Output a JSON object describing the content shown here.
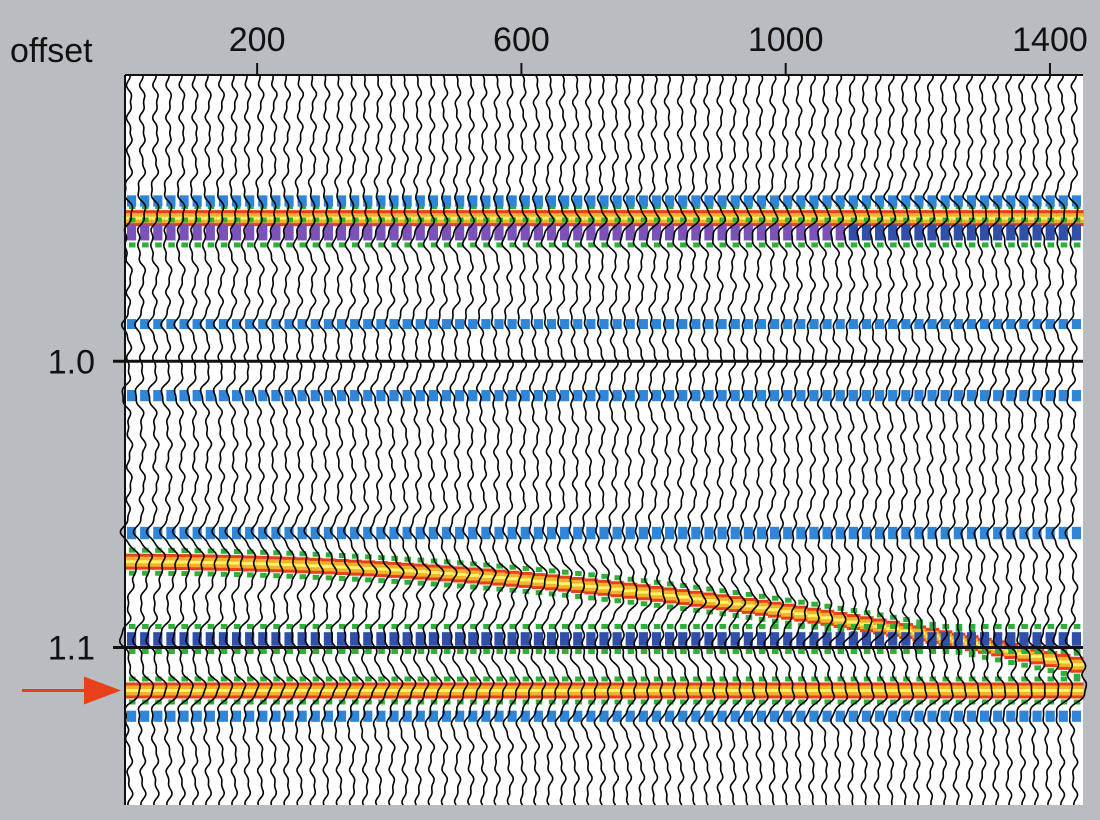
{
  "chart_data": {
    "type": "seismic-gather",
    "x_axis_label": "offset",
    "x_ticks": [
      200,
      600,
      1000,
      1400
    ],
    "xlim": [
      0,
      1450
    ],
    "y_ticks": [
      1.0,
      1.1
    ],
    "ylim": [
      0.9,
      1.155
    ],
    "trace_count": 73,
    "trace_spacing": 20,
    "events": [
      {
        "t0": 0.95,
        "moveout": 0.0,
        "type": "peak",
        "strength": 1.0
      },
      {
        "t0": 0.955,
        "moveout": 0.0,
        "type": "trough",
        "strength": 1.0
      },
      {
        "t0": 0.944,
        "moveout": 0.0,
        "type": "trough",
        "strength": 0.6
      },
      {
        "t0": 0.987,
        "moveout": 0.0,
        "type": "trough",
        "strength": 0.5
      },
      {
        "t0": 1.012,
        "moveout": 0.0,
        "type": "trough",
        "strength": 0.6
      },
      {
        "t0": 1.06,
        "moveout": 0.0,
        "type": "trough",
        "strength": 0.7
      },
      {
        "t0": 1.07,
        "moveout": 0.036,
        "type": "peak",
        "strength": 1.0
      },
      {
        "t0": 1.097,
        "moveout": 0.0,
        "type": "trough",
        "strength": 0.8
      },
      {
        "t0": 1.115,
        "moveout": 0.0,
        "type": "peak",
        "strength": 1.0
      },
      {
        "t0": 1.124,
        "moveout": 0.0,
        "type": "trough",
        "strength": 0.6
      }
    ],
    "colors": {
      "peak_strong": "#e8401a",
      "peak_mid": "#f2b22a",
      "peak_core": "#fff36a",
      "trough_strong": "#2f4fa8",
      "trough_mid": "#2f86d8",
      "trough_violet": "#7a52b8",
      "weak": "#2fae3a",
      "wiggle": "#000000",
      "background": "#b9bdc2"
    },
    "annotation": {
      "type": "arrow",
      "color": "#e8401a",
      "points_to_t": 1.115
    }
  }
}
